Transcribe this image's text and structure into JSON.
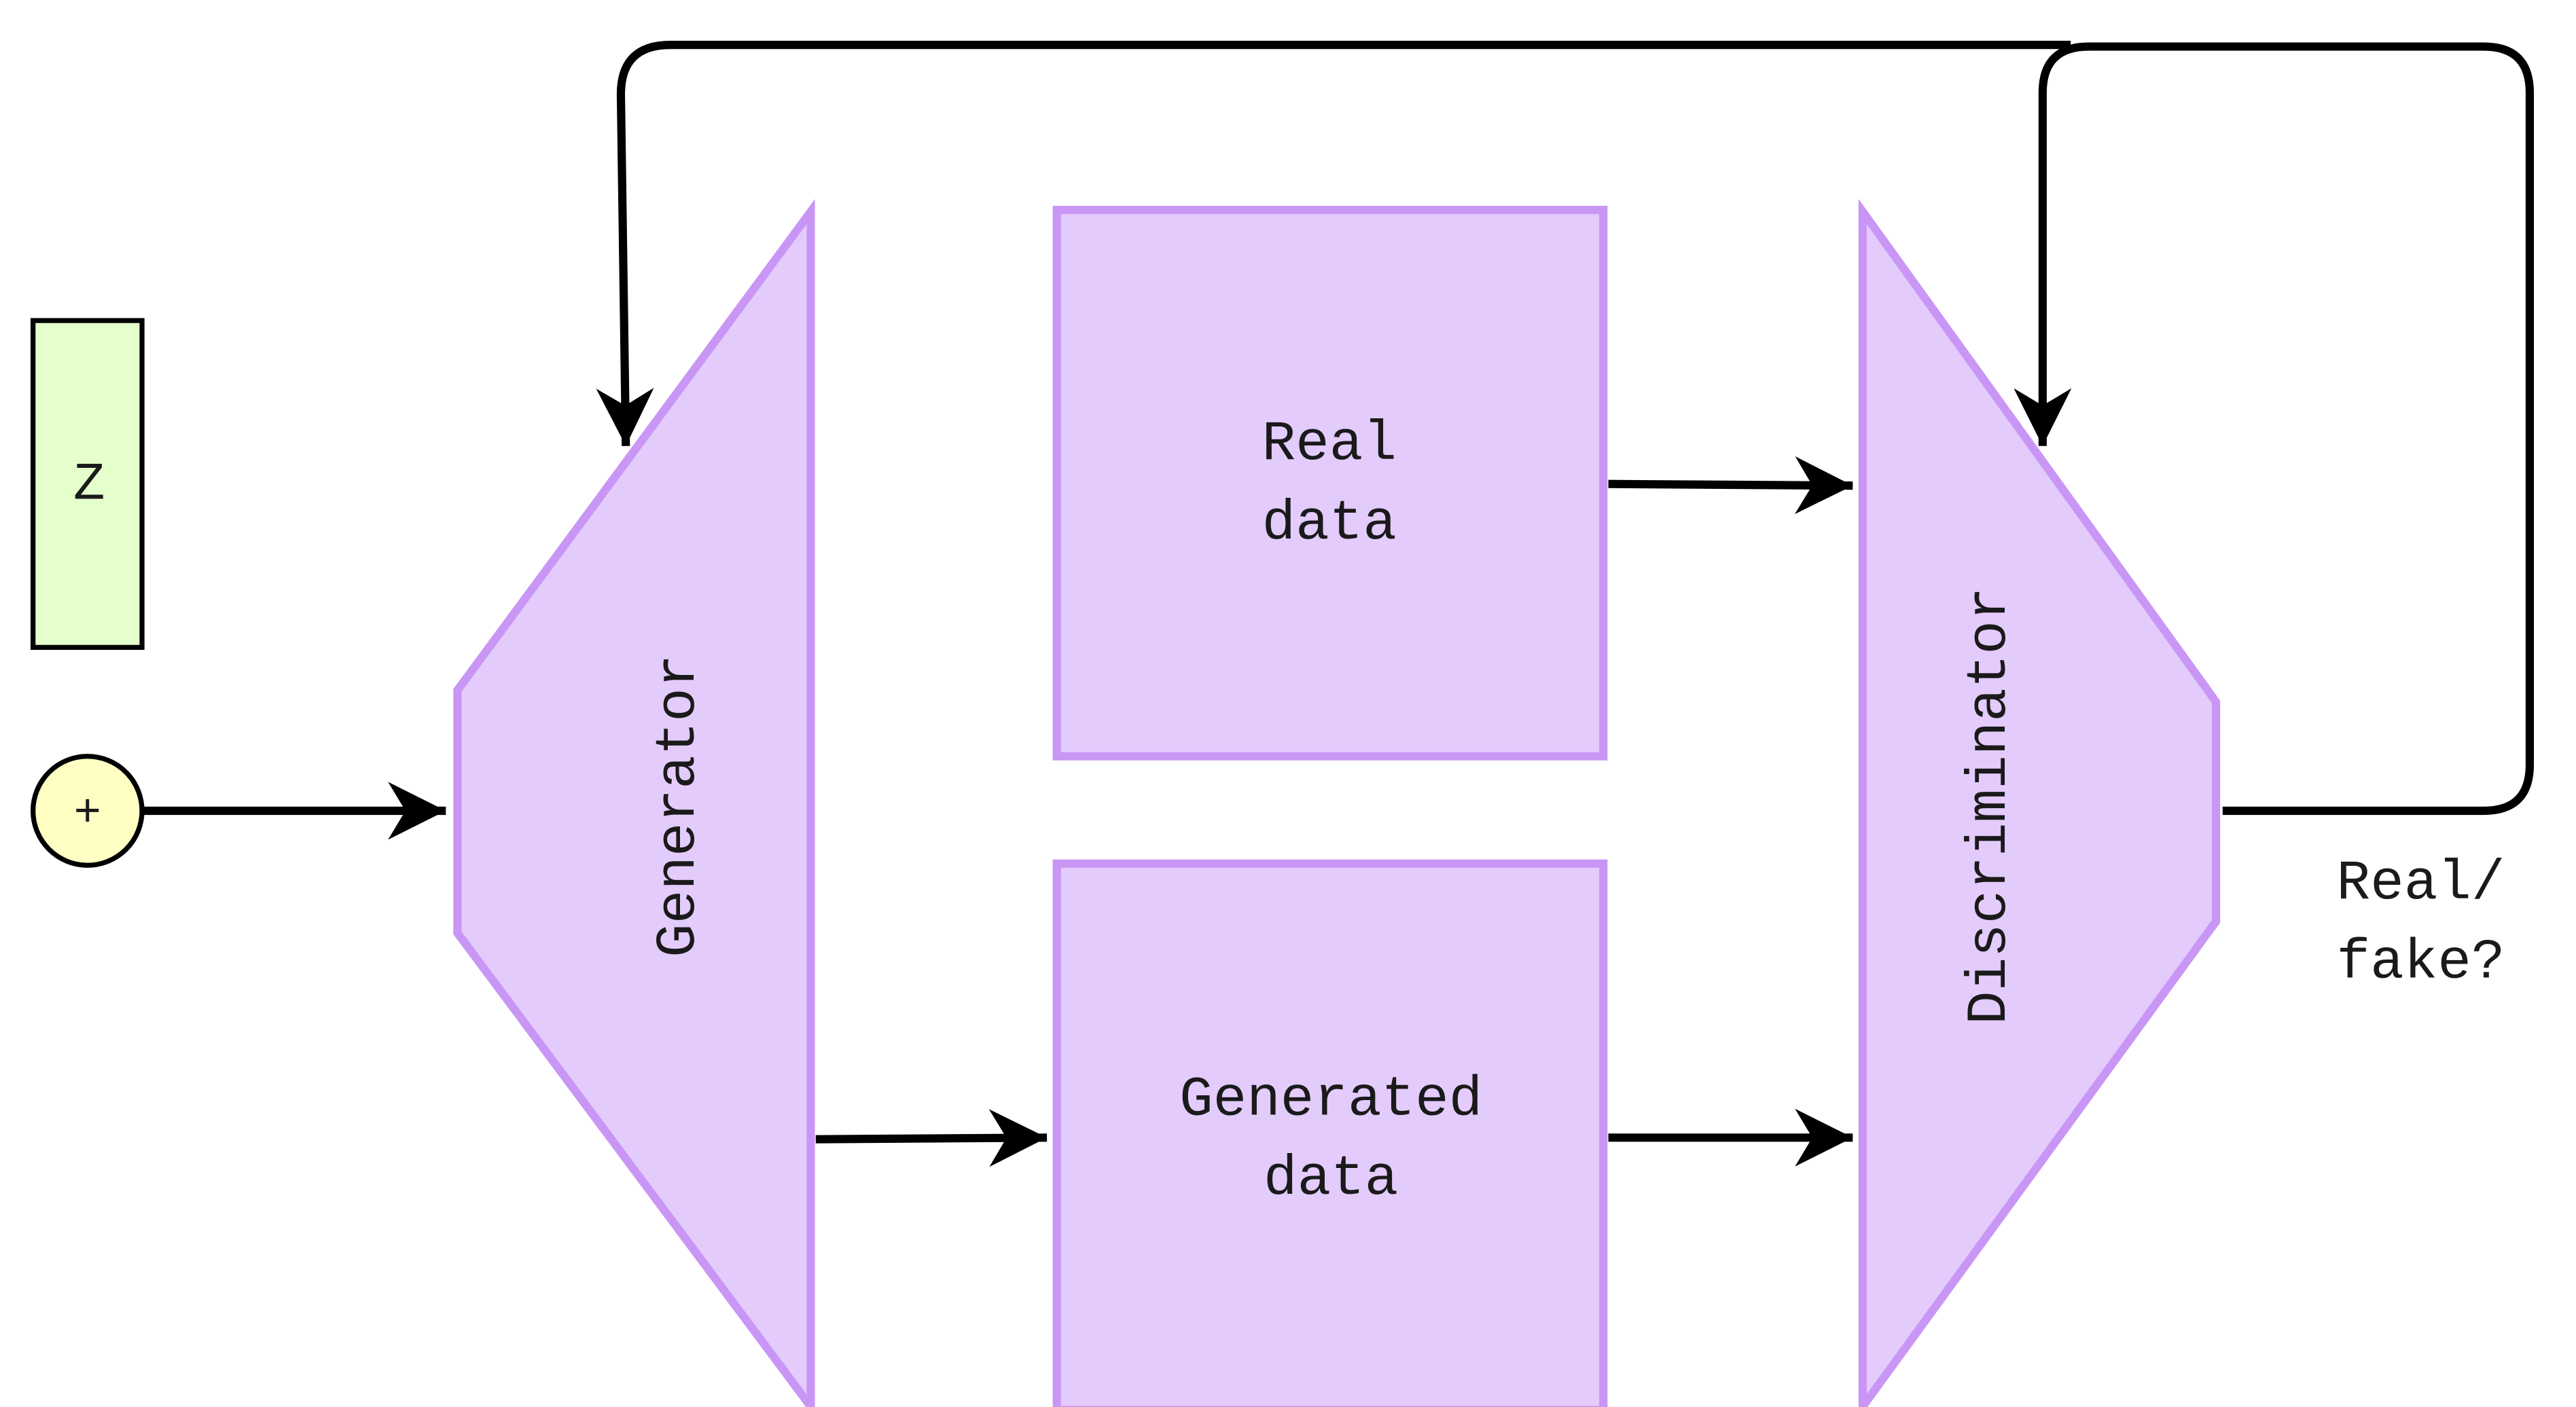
{
  "z_box": {
    "label": "Z"
  },
  "sum_node": {
    "symbol": "+"
  },
  "generator": {
    "label": "Generator"
  },
  "real_data": {
    "line1": "Real",
    "line2": "data"
  },
  "generated_data": {
    "line1": "Generated",
    "line2": "data"
  },
  "discriminator": {
    "label": "Discriminator"
  },
  "output": {
    "line1": "Real/",
    "line2": "fake?"
  },
  "colors": {
    "block_fill": "#e3cbfc",
    "block_stroke": "#c996f6",
    "z_fill": "#e5ffcc",
    "sum_fill": "#ffffc4",
    "arrow": "#000000"
  }
}
